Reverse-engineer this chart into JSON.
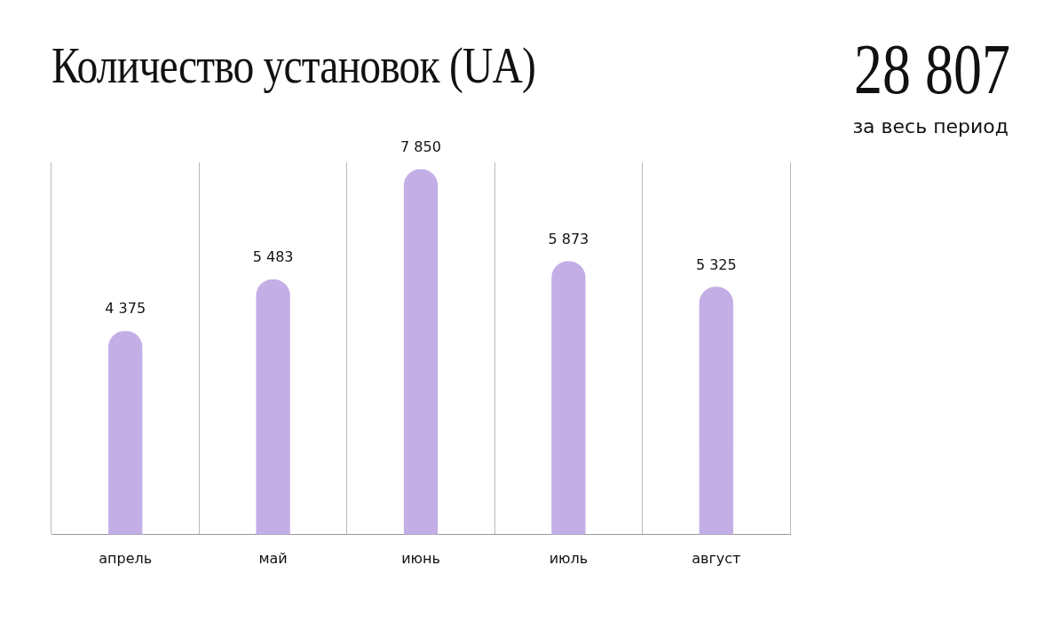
{
  "chart_data": {
    "type": "bar",
    "title": "Количество установок (UA)",
    "categories": [
      "апрель",
      "май",
      "июнь",
      "июль",
      "август"
    ],
    "values": [
      4375,
      5483,
      7850,
      5873,
      5325
    ],
    "value_labels": [
      "4 375",
      "5 483",
      "7 850",
      "5 873",
      "5 325"
    ],
    "color": "#c3aee6",
    "grid": "x",
    "annotations": [
      "28 807",
      "за весь период"
    ]
  }
}
